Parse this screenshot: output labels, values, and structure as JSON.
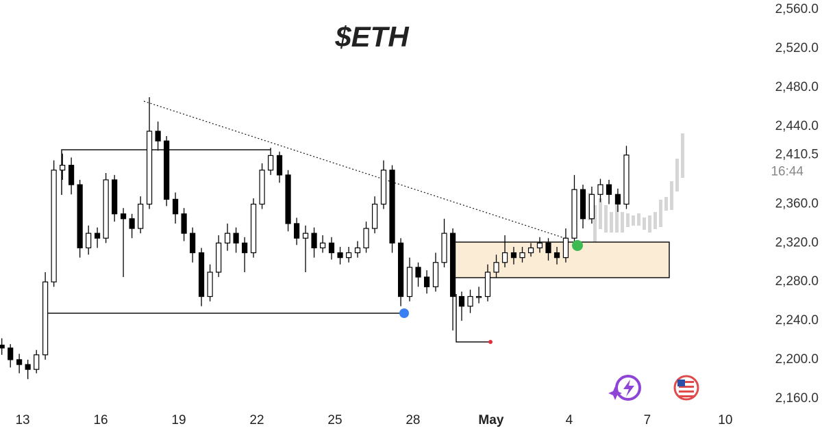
{
  "chart_data": {
    "type": "candlestick",
    "title": "$ETH",
    "up_color": "#ffffff",
    "down_color": "#000000",
    "outline_color": "#000000",
    "x": [
      12.2,
      12.53,
      12.87,
      13.2,
      13.53,
      13.87,
      14.2,
      14.53,
      14.87,
      15.2,
      15.53,
      15.87,
      16.2,
      16.53,
      16.87,
      17.2,
      17.53,
      17.87,
      18.2,
      18.53,
      18.87,
      19.2,
      19.53,
      19.87,
      20.2,
      20.53,
      20.87,
      21.2,
      21.53,
      21.87,
      22.2,
      22.53,
      22.87,
      23.2,
      23.53,
      23.87,
      24.2,
      24.53,
      24.87,
      25.2,
      25.53,
      25.87,
      26.2,
      26.53,
      26.87,
      27.2,
      27.53,
      27.87,
      28.2,
      28.53,
      28.87,
      29.2,
      29.53,
      29.87,
      30.2,
      30.53,
      30.87,
      31.2,
      31.53,
      31.87,
      32.2,
      32.53,
      32.87,
      33.2,
      33.53,
      33.87,
      34.2,
      34.53,
      34.87,
      35.2,
      35.53,
      35.87,
      36.2
    ],
    "open": [
      2215,
      2212,
      2200,
      2195,
      2190,
      2205,
      2280,
      2395,
      2400,
      2380,
      2315,
      2330,
      2325,
      2385,
      2350,
      2345,
      2335,
      2360,
      2435,
      2425,
      2365,
      2350,
      2330,
      2310,
      2265,
      2290,
      2320,
      2330,
      2320,
      2310,
      2360,
      2395,
      2410,
      2390,
      2340,
      2325,
      2330,
      2315,
      2320,
      2310,
      2305,
      2310,
      2315,
      2335,
      2360,
      2395,
      2320,
      2265,
      2295,
      2285,
      2275,
      2300,
      2330,
      2265,
      2255,
      2265,
      2265,
      2290,
      2300,
      2310,
      2305,
      2310,
      2315,
      2320,
      2310,
      2305,
      2325,
      2375,
      2345,
      2370,
      2380,
      2370,
      2360
    ],
    "high": [
      2222,
      2216,
      2206,
      2200,
      2210,
      2290,
      2405,
      2412,
      2408,
      2385,
      2338,
      2336,
      2392,
      2390,
      2356,
      2350,
      2368,
      2470,
      2445,
      2430,
      2372,
      2356,
      2336,
      2315,
      2298,
      2328,
      2340,
      2336,
      2326,
      2366,
      2402,
      2418,
      2414,
      2395,
      2346,
      2338,
      2336,
      2328,
      2326,
      2316,
      2316,
      2322,
      2342,
      2368,
      2405,
      2400,
      2325,
      2305,
      2300,
      2292,
      2310,
      2345,
      2335,
      2270,
      2272,
      2275,
      2298,
      2308,
      2328,
      2316,
      2316,
      2320,
      2326,
      2325,
      2316,
      2335,
      2390,
      2380,
      2378,
      2386,
      2385,
      2376,
      2420
    ],
    "low": [
      2205,
      2192,
      2186,
      2180,
      2186,
      2200,
      2275,
      2385,
      2370,
      2305,
      2308,
      2315,
      2320,
      2342,
      2285,
      2325,
      2330,
      2355,
      2415,
      2358,
      2340,
      2322,
      2300,
      2255,
      2260,
      2285,
      2312,
      2310,
      2290,
      2305,
      2355,
      2390,
      2382,
      2332,
      2318,
      2290,
      2305,
      2310,
      2303,
      2298,
      2300,
      2305,
      2310,
      2330,
      2355,
      2310,
      2255,
      2260,
      2275,
      2268,
      2270,
      2295,
      2230,
      2240,
      2248,
      2258,
      2260,
      2284,
      2295,
      2298,
      2300,
      2306,
      2310,
      2302,
      2298,
      2300,
      2318,
      2335,
      2340,
      2362,
      2360,
      2352,
      2355
    ],
    "close": [
      2212,
      2200,
      2195,
      2190,
      2205,
      2280,
      2395,
      2400,
      2380,
      2315,
      2330,
      2325,
      2385,
      2350,
      2345,
      2335,
      2360,
      2435,
      2425,
      2365,
      2350,
      2330,
      2310,
      2265,
      2290,
      2320,
      2330,
      2320,
      2310,
      2360,
      2395,
      2410,
      2390,
      2340,
      2325,
      2330,
      2315,
      2320,
      2310,
      2305,
      2310,
      2315,
      2335,
      2360,
      2395,
      2320,
      2265,
      2295,
      2285,
      2275,
      2300,
      2330,
      2265,
      2255,
      2265,
      2265,
      2290,
      2300,
      2310,
      2305,
      2310,
      2315,
      2320,
      2310,
      2305,
      2325,
      2375,
      2345,
      2370,
      2380,
      2370,
      2360,
      2410.5
    ],
    "xlim": [
      12.13,
      40.82
    ],
    "xticks": [
      13,
      16,
      19,
      22,
      25,
      28,
      {
        "value": 31,
        "label": "May"
      },
      {
        "value": 34,
        "label": "4"
      },
      {
        "value": 37,
        "label": "7"
      },
      {
        "value": 40,
        "label": "10"
      }
    ],
    "ylim": [
      2150,
      2570
    ],
    "yticks": [
      {
        "value": 2560,
        "label": "2,560.0"
      },
      {
        "value": 2520,
        "label": "2,520.0"
      },
      {
        "value": 2480,
        "label": "2,480.0"
      },
      {
        "value": 2440,
        "label": "2,440.0"
      },
      {
        "value": 2360,
        "label": "2,360.0"
      },
      {
        "value": 2320,
        "label": "2,320.0"
      },
      {
        "value": 2280,
        "label": "2,280.0"
      },
      {
        "value": 2240,
        "label": "2,240.0"
      },
      {
        "value": 2200,
        "label": "2,200.0"
      },
      {
        "value": 2160,
        "label": "2,160.0"
      }
    ],
    "last_price": {
      "value": 2410.5,
      "label": "2,410.5"
    },
    "countdown": "16:44"
  }
}
